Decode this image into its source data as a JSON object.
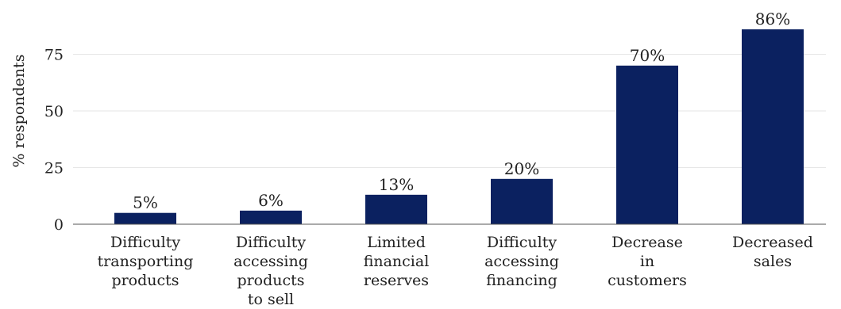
{
  "chart_data": {
    "type": "bar",
    "categories": [
      [
        "Difficulty",
        "transporting",
        "products"
      ],
      [
        "Difficulty",
        "accessing",
        "products",
        "to sell"
      ],
      [
        "Limited",
        "financial",
        "reserves"
      ],
      [
        "Difficulty",
        "accessing",
        "financing"
      ],
      [
        "Decrease",
        "in",
        "customers"
      ],
      [
        "Decreased",
        "sales"
      ]
    ],
    "values": [
      5,
      6,
      13,
      20,
      70,
      86
    ],
    "value_labels": [
      "5%",
      "6%",
      "13%",
      "20%",
      "70%",
      "86%"
    ],
    "ylabel": "% respondents",
    "xlabel": "",
    "yticks": [
      0,
      25,
      50,
      75
    ],
    "ylim": [
      0,
      88
    ],
    "grid": "horizontal",
    "bar_color": "#0b2160"
  }
}
